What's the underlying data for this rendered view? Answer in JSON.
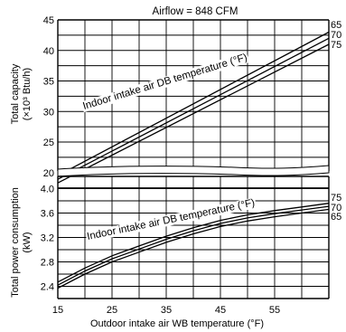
{
  "header": {
    "airflow": "Airflow = 848 CFM"
  },
  "xaxis": {
    "label": "Outdoor intake air WB temperature (°F)",
    "ticks": [
      15,
      25,
      35,
      45,
      55
    ],
    "range": [
      15,
      65
    ]
  },
  "top_panel": {
    "ylabel_line1": "Total capacity",
    "ylabel_line2": "(×10³ Btu/h)",
    "annotation": "Indoor intake air DB temperature (°F)",
    "yticks": [
      20,
      25,
      30,
      35,
      40,
      45
    ],
    "series_labels": [
      "65",
      "70",
      "75"
    ]
  },
  "bottom_panel": {
    "ylabel_line1": "Total power consumption",
    "ylabel_line2": "(kW)",
    "annotation": "Indoor intake air DB temperature (°F)",
    "yticks": [
      "2.4",
      "2.8",
      "3.2",
      "3.6",
      "4.0"
    ],
    "series_labels": [
      "75",
      "70",
      "65"
    ]
  },
  "chart_data": [
    {
      "type": "line",
      "title": "Airflow = 848 CFM",
      "xlabel": "Outdoor intake air WB temperature (°F)",
      "ylabel": "Total capacity (×10³ Btu/h)",
      "xlim": [
        15,
        65
      ],
      "ylim": [
        17,
        45
      ],
      "grid": true,
      "series": [
        {
          "name": "65",
          "x": [
            15,
            65
          ],
          "y": [
            19.5,
            43.0
          ]
        },
        {
          "name": "70",
          "x": [
            15,
            65
          ],
          "y": [
            18.9,
            42.0
          ]
        },
        {
          "name": "75",
          "x": [
            15,
            65
          ],
          "y": [
            18.3,
            41.0
          ]
        }
      ]
    },
    {
      "type": "line",
      "xlabel": "Outdoor intake air WB temperature (°F)",
      "ylabel": "Total power consumption (kW)",
      "xlim": [
        15,
        65
      ],
      "ylim": [
        2.2,
        4.2
      ],
      "grid": true,
      "series": [
        {
          "name": "75",
          "x": [
            15,
            20,
            25,
            30,
            35,
            40,
            45,
            50,
            55,
            60,
            65
          ],
          "y": [
            2.47,
            2.7,
            2.9,
            3.06,
            3.22,
            3.36,
            3.48,
            3.57,
            3.64,
            3.7,
            3.76
          ]
        },
        {
          "name": "70",
          "x": [
            15,
            20,
            25,
            30,
            35,
            40,
            45,
            50,
            55,
            60,
            65
          ],
          "y": [
            2.42,
            2.65,
            2.85,
            3.01,
            3.17,
            3.31,
            3.43,
            3.52,
            3.59,
            3.65,
            3.71
          ]
        },
        {
          "name": "65",
          "x": [
            15,
            20,
            25,
            30,
            35,
            40,
            45,
            50,
            55,
            60,
            65
          ],
          "y": [
            2.37,
            2.6,
            2.8,
            2.96,
            3.12,
            3.26,
            3.38,
            3.47,
            3.54,
            3.6,
            3.66
          ]
        }
      ]
    }
  ]
}
